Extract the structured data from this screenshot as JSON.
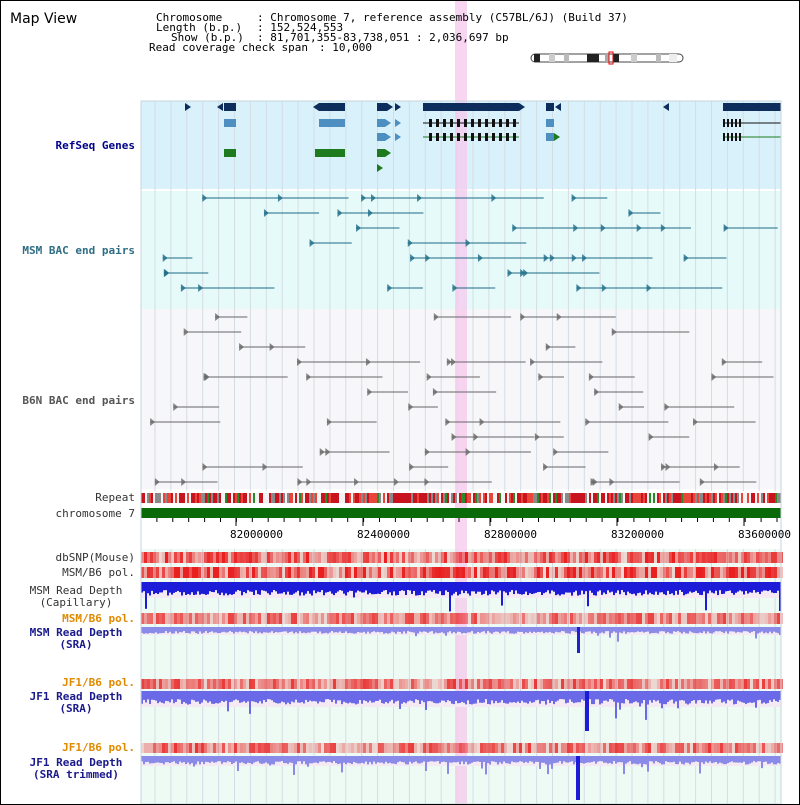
{
  "window": {
    "title": "Map View"
  },
  "info": {
    "chromosome_key": "Chromosome",
    "chromosome_val": ": Chromosome 7, reference assembly (C57BL/6J) (Build 37)",
    "length_key": "Length (b.p.)",
    "length_val": ": 152,524,553",
    "show_key": "Show (b.p.)",
    "show_val": ": 81,701,355-83,738,051 : 2,036,697 bp",
    "coverage_key": "Read coverage check span",
    "coverage_val": ": 10,000"
  },
  "tracks": {
    "refseq": "RefSeq Genes",
    "msm_bac": "MSM BAC end pairs",
    "b6n_bac": "B6N BAC end pairs",
    "repeat": "Repeat",
    "chromosome": "chromosome 7",
    "dbsnp": "dbSNP(Mouse)",
    "msm_b6_pol": "MSM/B6 pol.",
    "msm_read_cap_1": "MSM Read Depth",
    "msm_read_cap_2": "(Capillary)",
    "msm_b6_pol_2": "MSM/B6 pol.",
    "msm_read_sra_1": "MSM Read Depth",
    "msm_read_sra_2": "(SRA)",
    "jf1_pol": "JF1/B6 pol.",
    "jf1_read_1": "JF1 Read Depth",
    "jf1_read_2": "(SRA)",
    "jf1_pol_2": "JF1/B6 pol.",
    "jf1_trim_1": "JF1 Read Depth",
    "jf1_trim_2": "(SRA trimmed)"
  },
  "axis": {
    "ticks": [
      "82000000",
      "82400000",
      "82800000",
      "83200000",
      "83600000"
    ]
  },
  "colors": {
    "refseq_bg": "#d9f1fb",
    "bac_bg": "#e6fafa",
    "b6n_bg": "#f7f7fa",
    "depth_bg": "#eefaf4",
    "highlight": "#f5c8ec",
    "gene_navy": "#0d2e5c",
    "gene_steel": "#4d8fc0",
    "gene_green": "#1d7a1d",
    "chrom_green": "#0a6a0a",
    "depth_blue": "#2020e0"
  }
}
